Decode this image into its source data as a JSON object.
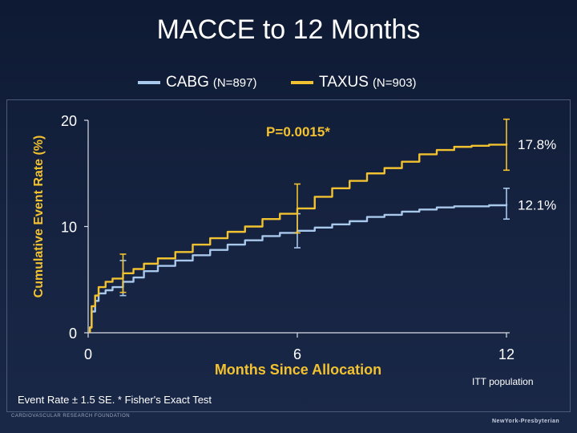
{
  "slide": {
    "title": "MACCE to 12 Months",
    "footnote": "Event Rate ± 1.5 SE. * Fisher's Exact Test",
    "population": "ITT population",
    "org_left": "CARDIOVASCULAR RESEARCH FOUNDATION",
    "org_right": "NewYork-Presbyterian"
  },
  "legend": [
    {
      "name": "CABG",
      "n": "(N=897)",
      "color": "#a8c8ec"
    },
    {
      "name": "TAXUS",
      "n": "(N=903)",
      "color": "#f2c230"
    }
  ],
  "chart_data": {
    "type": "line",
    "xlabel": "Months Since Allocation",
    "ylabel": "Cumulative Event Rate (%)",
    "xlim": [
      0,
      12
    ],
    "ylim": [
      0,
      20
    ],
    "x_ticks": [
      "0",
      "6",
      "12"
    ],
    "y_ticks": [
      "0",
      "10",
      "20"
    ],
    "annotation": "P=0.0015*",
    "end_labels": [
      "12.1%",
      "17.8%"
    ],
    "series": [
      {
        "name": "CABG",
        "color": "#a8c8ec",
        "x": [
          0.05,
          0.1,
          0.2,
          0.3,
          0.5,
          0.7,
          1.0,
          1.3,
          1.6,
          2.0,
          2.5,
          3.0,
          3.5,
          4.0,
          4.5,
          5.0,
          5.5,
          6.0,
          6.5,
          7.0,
          7.5,
          8.0,
          8.5,
          9.0,
          9.5,
          10.0,
          10.5,
          11.0,
          11.5,
          12.0
        ],
        "y": [
          0.5,
          2.0,
          3.0,
          3.7,
          4.0,
          4.3,
          4.8,
          5.2,
          5.8,
          6.3,
          6.8,
          7.3,
          7.8,
          8.3,
          8.7,
          9.1,
          9.4,
          9.6,
          9.9,
          10.2,
          10.5,
          10.9,
          11.1,
          11.4,
          11.6,
          11.8,
          11.9,
          11.9,
          12.0,
          12.1
        ],
        "error_bars": [
          {
            "x": 1.0,
            "low": 3.5,
            "high": 6.8
          },
          {
            "x": 6.0,
            "low": 8.0,
            "high": 11.2
          },
          {
            "x": 12.0,
            "low": 10.7,
            "high": 13.6
          }
        ]
      },
      {
        "name": "TAXUS",
        "color": "#f2c230",
        "x": [
          0.05,
          0.1,
          0.2,
          0.3,
          0.5,
          0.7,
          1.0,
          1.3,
          1.6,
          2.0,
          2.5,
          3.0,
          3.5,
          4.0,
          4.5,
          5.0,
          5.5,
          6.0,
          6.5,
          7.0,
          7.5,
          8.0,
          8.5,
          9.0,
          9.5,
          10.0,
          10.5,
          11.0,
          11.5,
          12.0
        ],
        "y": [
          0.5,
          2.5,
          3.5,
          4.3,
          4.8,
          5.1,
          5.6,
          6.0,
          6.5,
          7.0,
          7.6,
          8.3,
          8.9,
          9.5,
          10.0,
          10.7,
          11.2,
          11.7,
          12.8,
          13.6,
          14.3,
          15.0,
          15.5,
          16.1,
          16.8,
          17.2,
          17.5,
          17.6,
          17.7,
          17.8
        ],
        "error_bars": [
          {
            "x": 1.0,
            "low": 3.8,
            "high": 7.4
          },
          {
            "x": 6.0,
            "low": 9.4,
            "high": 14.0
          },
          {
            "x": 12.0,
            "low": 15.3,
            "high": 20.1
          }
        ]
      }
    ]
  }
}
